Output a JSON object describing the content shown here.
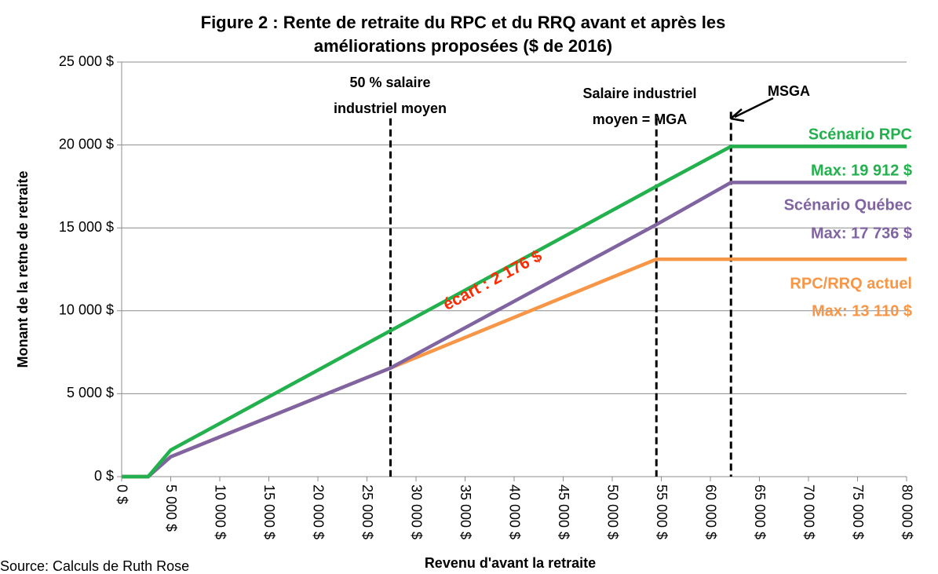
{
  "chart_data": {
    "type": "line",
    "title": [
      "Figure 2 : Rente de retraite du RPC et du RRQ avant et après les",
      "améliorations proposées ($ de 2016)"
    ],
    "xlabel": "Revenu d'avant la retraite",
    "ylabel": "Monant de la retne de retraite",
    "source": "Source: Calculs de Ruth Rose",
    "x": [
      0,
      2700,
      5000,
      27400,
      54500,
      62100,
      80000
    ],
    "series": [
      {
        "name": "Scénario RPC",
        "color": "#22b14c",
        "values": [
          0,
          0,
          1600,
          8800,
          17500,
          19912,
          19912
        ],
        "max_label": "Max: 19 912 $"
      },
      {
        "name": "Scénario Québec",
        "color": "#8064a2",
        "values": [
          0,
          0,
          1200,
          6550,
          15200,
          17736,
          17736
        ],
        "max_label": "Max:  17 736 $"
      },
      {
        "name": "RPC/RRQ actuel",
        "color": "#f79646",
        "values": [
          0,
          0,
          1200,
          6550,
          13110,
          13110,
          13110
        ],
        "max_label": "Max: 13 110 $"
      }
    ],
    "xlim": [
      0,
      80000
    ],
    "ylim": [
      0,
      25000
    ],
    "xticks": [
      {
        "value": 0,
        "label": "0 $"
      },
      {
        "value": 5000,
        "label": "5 000 $"
      },
      {
        "value": 10000,
        "label": "10 000 $"
      },
      {
        "value": 15000,
        "label": "15 000 $"
      },
      {
        "value": 20000,
        "label": "20 000 $"
      },
      {
        "value": 25000,
        "label": "25 000 $"
      },
      {
        "value": 30000,
        "label": "30 000 $"
      },
      {
        "value": 35000,
        "label": "35 000 $"
      },
      {
        "value": 40000,
        "label": "40 000 $"
      },
      {
        "value": 45000,
        "label": "45 000 $"
      },
      {
        "value": 50000,
        "label": "50 000 $"
      },
      {
        "value": 55000,
        "label": "55 000 $"
      },
      {
        "value": 60000,
        "label": "60 000 $"
      },
      {
        "value": 65000,
        "label": "65 000 $"
      },
      {
        "value": 70000,
        "label": "70 000 $"
      },
      {
        "value": 75000,
        "label": "75 000 $"
      },
      {
        "value": 80000,
        "label": "80 000 $"
      }
    ],
    "yticks": [
      {
        "value": 0,
        "label": "0 $"
      },
      {
        "value": 5000,
        "label": "5 000 $"
      },
      {
        "value": 10000,
        "label": "10 000 $"
      },
      {
        "value": 15000,
        "label": "15 000 $"
      },
      {
        "value": 20000,
        "label": "20 000 $"
      },
      {
        "value": 25000,
        "label": "25 000 $"
      }
    ],
    "grid": true,
    "reference_lines": [
      {
        "x": 27400,
        "y_top": 21600,
        "label": [
          "50 % salaire",
          "industriel moyen"
        ]
      },
      {
        "x": 54500,
        "y_top": 21600,
        "label": [
          "Salaire industriel",
          "moyen = MGA"
        ]
      },
      {
        "x": 62100,
        "y_top": 22000,
        "label": [
          "MSGA"
        ]
      }
    ],
    "gap_annotation": "écart : 2 176 $"
  }
}
